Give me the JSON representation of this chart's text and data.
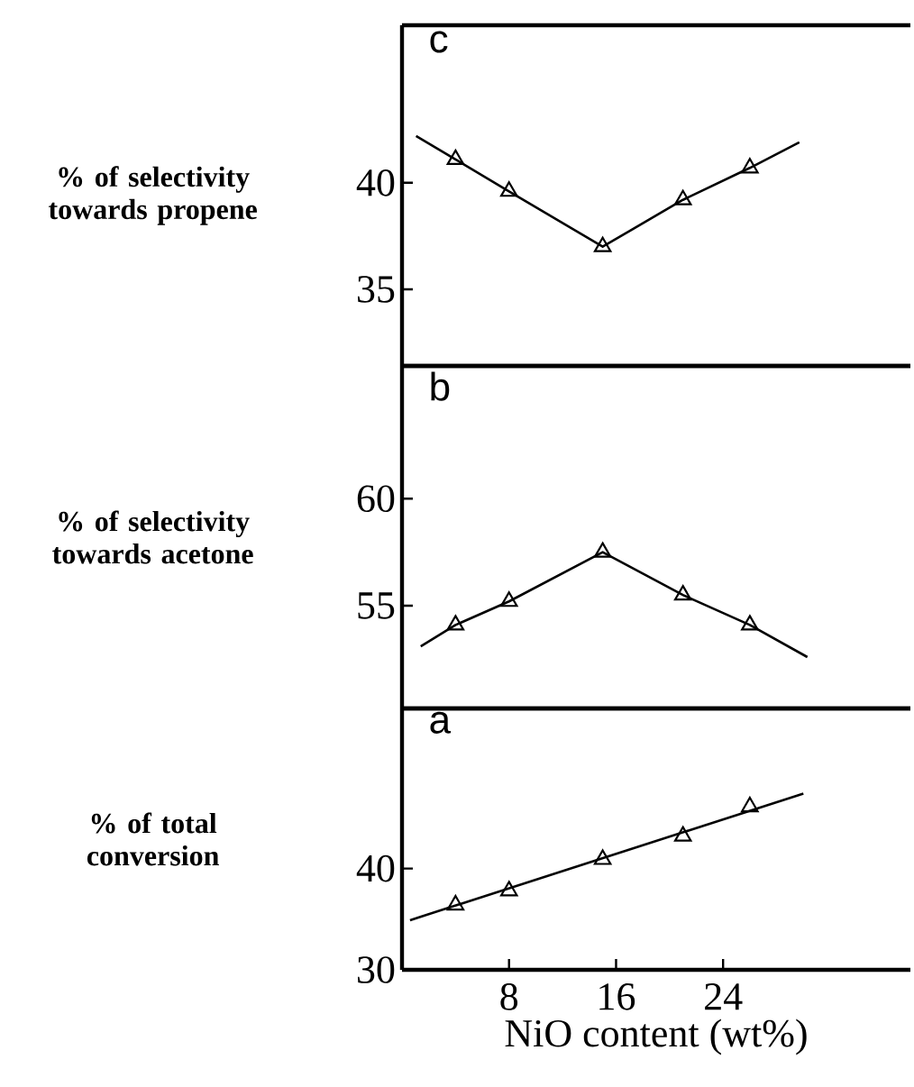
{
  "chart_data": [
    {
      "type": "scatter",
      "title": "c",
      "ylabel": "% of selectivity towards propene",
      "xlim": [
        0,
        38
      ],
      "ylim": [
        31.4,
        47.4
      ],
      "yticks": [
        35,
        40
      ],
      "tick_labels": "y",
      "line_style": "solid",
      "series": [
        {
          "type": "line",
          "marker": "none",
          "color": "#000000",
          "x": [
            1.05,
            4,
            8,
            15,
            21,
            26,
            29.7
          ],
          "values": [
            42.2,
            41.1,
            39.6,
            37.0,
            39.2,
            40.7,
            41.9
          ]
        },
        {
          "marker": "triangle",
          "color": "#000000",
          "x": [
            4,
            8,
            15,
            21,
            26
          ],
          "values": [
            41.1,
            39.6,
            37.0,
            39.2,
            40.7
          ]
        }
      ]
    },
    {
      "type": "scatter",
      "title": "b",
      "ylabel": "% of selectivity towards acetone",
      "xlim": [
        0,
        38
      ],
      "ylim": [
        50.2,
        66.2
      ],
      "yticks": [
        55,
        60
      ],
      "tick_labels": "y",
      "line_style": "solid",
      "series": [
        {
          "type": "line",
          "marker": "none",
          "color": "#000000",
          "x": [
            1.4,
            4,
            8,
            15,
            21,
            26,
            30.3
          ],
          "values": [
            53.1,
            54.1,
            55.2,
            57.5,
            55.5,
            54.1,
            52.6
          ]
        },
        {
          "marker": "triangle",
          "color": "#000000",
          "x": [
            4,
            8,
            15,
            21,
            26
          ],
          "values": [
            54.1,
            55.2,
            57.5,
            55.5,
            54.1
          ]
        }
      ]
    },
    {
      "type": "scatter",
      "title": "a",
      "ylabel": "% of total conversion",
      "xlabel": "NiO content (wt%)",
      "xlim": [
        0,
        38
      ],
      "ylim": [
        30,
        55.8
      ],
      "xticks": [
        8,
        16,
        24
      ],
      "yticks": [
        30,
        40
      ],
      "line_style": "solid",
      "series": [
        {
          "type": "line",
          "marker": "none",
          "color": "#000000",
          "x": [
            0.6,
            30
          ],
          "values": [
            34.9,
            47.4
          ]
        },
        {
          "marker": "triangle",
          "color": "#000000",
          "x": [
            4,
            8,
            15,
            21,
            26
          ],
          "values": [
            36.4,
            37.8,
            40.9,
            43.2,
            46.1
          ]
        }
      ]
    }
  ]
}
